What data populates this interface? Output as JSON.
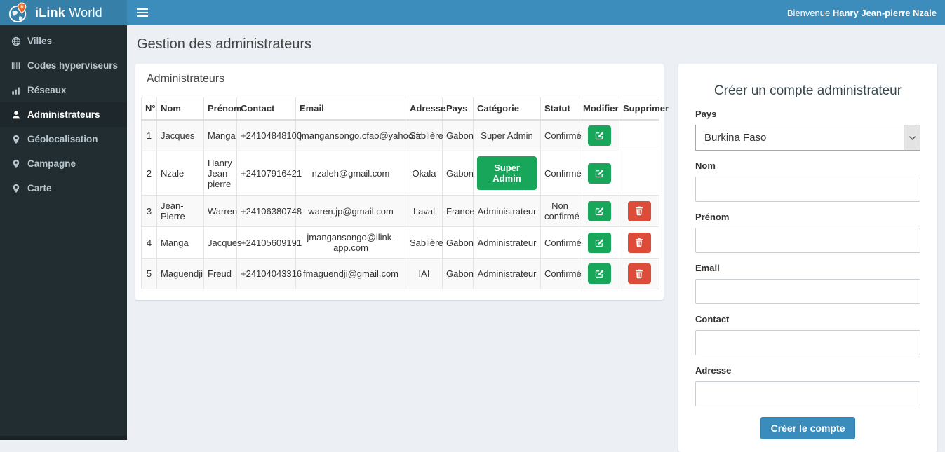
{
  "app": {
    "brand_bold": "iLink",
    "brand_rest": " World",
    "welcome_prefix": "Bienvenue ",
    "welcome_name": "Hanry Jean-pierre Nzale"
  },
  "sidebar": {
    "items": [
      {
        "id": "villes",
        "label": "Villes",
        "icon": "globe-icon",
        "active": false
      },
      {
        "id": "codes-hyperviseurs",
        "label": "Codes hyperviseurs",
        "icon": "barcode-icon",
        "active": false
      },
      {
        "id": "reseaux",
        "label": "Réseaux",
        "icon": "bar-chart-icon",
        "active": false
      },
      {
        "id": "administrateurs",
        "label": "Administrateurs",
        "icon": "user-icon",
        "active": true
      },
      {
        "id": "geolocalisation",
        "label": "Géolocalisation",
        "icon": "map-marker-icon",
        "active": false
      },
      {
        "id": "campagne",
        "label": "Campagne",
        "icon": "map-marker-icon",
        "active": false
      },
      {
        "id": "carte",
        "label": "Carte",
        "icon": "map-marker-icon",
        "active": false
      }
    ]
  },
  "page": {
    "title": "Gestion des administrateurs"
  },
  "panel": {
    "title": "Administrateurs"
  },
  "table": {
    "columns": [
      "N°",
      "Nom",
      "Prénom",
      "Contact",
      "Email",
      "Adresse",
      "Pays",
      "Catégorie",
      "Statut",
      "Modifier",
      "Supprimer"
    ],
    "rows": [
      {
        "num": "1",
        "nom": "Jacques",
        "prenom": "Manga",
        "contact": "+24104848100",
        "email": "jmangansongo.cfao@yahoo.fr",
        "adresse": "Sablière",
        "pays": "Gabon",
        "categorie": "Super Admin",
        "categorie_badge": false,
        "statut": "Confirmé",
        "deletable": false
      },
      {
        "num": "2",
        "nom": "Nzale",
        "prenom": "Hanry Jean-pierre",
        "contact": "+24107916421",
        "email": "nzaleh@gmail.com",
        "adresse": "Okala",
        "pays": "Gabon",
        "categorie": "Super Admin",
        "categorie_badge": true,
        "statut": "Confirmé",
        "deletable": false
      },
      {
        "num": "3",
        "nom": "Jean-Pierre",
        "prenom": "Warren",
        "contact": "+24106380748",
        "email": "waren.jp@gmail.com",
        "adresse": "Laval",
        "pays": "France",
        "categorie": "Administrateur",
        "categorie_badge": false,
        "statut": "Non confirmé",
        "deletable": true
      },
      {
        "num": "4",
        "nom": "Manga",
        "prenom": "Jacques",
        "contact": "+24105609191",
        "email": "jmangansongo@ilink-app.com",
        "adresse": "Sablière",
        "pays": "Gabon",
        "categorie": "Administrateur",
        "categorie_badge": false,
        "statut": "Confirmé",
        "deletable": true
      },
      {
        "num": "5",
        "nom": "Maguendji",
        "prenom": "Freud",
        "contact": "+24104043316",
        "email": "fmaguendji@gmail.com",
        "adresse": "IAI",
        "pays": "Gabon",
        "categorie": "Administrateur",
        "categorie_badge": false,
        "statut": "Confirmé",
        "deletable": true
      }
    ]
  },
  "form": {
    "title": "Créer un compte administrateur",
    "fields": [
      {
        "id": "pays",
        "label": "Pays",
        "type": "select",
        "value": "Burkina Faso"
      },
      {
        "id": "nom",
        "label": "Nom",
        "type": "text",
        "value": "",
        "placeholder": ""
      },
      {
        "id": "prenom",
        "label": "Prénom",
        "type": "text",
        "value": "",
        "placeholder": ""
      },
      {
        "id": "email",
        "label": "Email",
        "type": "text",
        "value": "",
        "placeholder": ""
      },
      {
        "id": "contact",
        "label": "Contact",
        "type": "text",
        "value": "",
        "placeholder": ""
      },
      {
        "id": "adresse",
        "label": "Adresse",
        "type": "text",
        "value": "",
        "placeholder": ""
      }
    ],
    "submit_label": "Créer le compte"
  },
  "colors": {
    "navbar": "#3c8dbc",
    "logo_bg": "#367fa9",
    "sidebar_bg": "#222d32",
    "sidebar_active_bg": "#1e282c",
    "sidebar_text": "#b8c7ce",
    "content_bg": "#ecf0f5",
    "success_green": "#18a65a",
    "danger_red": "#dd4b39",
    "primary_blue": "#3a8cbc",
    "pin_orange": "#e8682a"
  }
}
